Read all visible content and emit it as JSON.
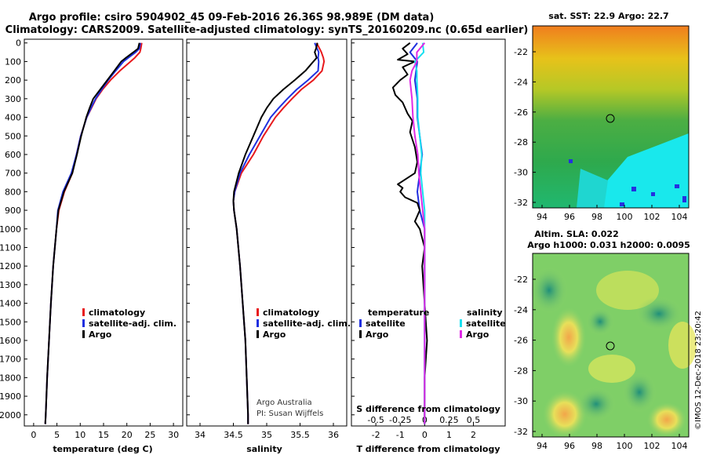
{
  "title": {
    "line1": "Argo profile: csiro 5904902_45 09-Feb-2016 26.36S 98.989E (DM data)",
    "line2": "Climatology: CARS2009. Satellite-adjusted climatology: synTS_20160209.nc (0.65d earlier)"
  },
  "colors": {
    "climatology": "#e8191c",
    "satellite": "#1f2fdf",
    "argo": "#000000",
    "sat_salinity": "#19e0f0",
    "argo_salinity": "#e02ae6"
  },
  "depth_ticks": [
    "0",
    "100",
    "200",
    "300",
    "400",
    "500",
    "600",
    "700",
    "800",
    "900",
    "1000",
    "1100",
    "1200",
    "1300",
    "1400",
    "1500",
    "1600",
    "1700",
    "1800",
    "1900",
    "2000"
  ],
  "chart_data": [
    {
      "type": "line",
      "name": "temperature",
      "xlabel": "temperature (deg C)",
      "xlim": [
        -2,
        32
      ],
      "ylim": [
        2060,
        -20
      ],
      "xticks": [
        "0",
        "5",
        "10",
        "15",
        "20",
        "25",
        "30"
      ],
      "xtick_values": [
        0,
        5,
        10,
        15,
        20,
        25,
        30
      ],
      "legend": [
        "climatology",
        "satellite-adj. clim.",
        "Argo"
      ],
      "series": [
        {
          "name": "climatology",
          "depth": [
            0,
            30,
            50,
            80,
            100,
            150,
            200,
            250,
            300,
            350,
            400,
            500,
            600,
            700,
            800,
            900,
            1000,
            1200,
            1400,
            1600,
            1800,
            2000,
            2050
          ],
          "values": [
            23.2,
            23,
            22.8,
            21.7,
            20.8,
            18.5,
            16.5,
            14.8,
            13.4,
            12.4,
            11.4,
            10.1,
            9.2,
            8.3,
            6.6,
            5.4,
            4.9,
            4.2,
            3.7,
            3.3,
            2.9,
            2.6,
            2.5
          ]
        },
        {
          "name": "satellite-adj. clim.",
          "depth": [
            0,
            30,
            50,
            80,
            100,
            150,
            200,
            250,
            300,
            350,
            400,
            500,
            600,
            700,
            800,
            900,
            1000,
            1200,
            1400,
            1600,
            1800,
            2000,
            2050
          ],
          "values": [
            22.9,
            22.7,
            21.9,
            20.3,
            19.3,
            17.6,
            16,
            14.6,
            13.3,
            12.3,
            11.4,
            10.1,
            9.2,
            8.1,
            6.3,
            5.2,
            4.9,
            4.2,
            3.7,
            3.3,
            2.9,
            2.6,
            2.5
          ]
        },
        {
          "name": "Argo",
          "depth": [
            0,
            30,
            50,
            80,
            100,
            150,
            200,
            250,
            300,
            350,
            400,
            500,
            600,
            700,
            800,
            900,
            1000,
            1200,
            1400,
            1600,
            1800,
            2000,
            2050
          ],
          "values": [
            22.7,
            22.4,
            21.4,
            19.8,
            18.8,
            17.3,
            15.8,
            14.3,
            12.8,
            12,
            11.3,
            10.2,
            9.3,
            8.3,
            6.5,
            5.3,
            4.9,
            4.2,
            3.7,
            3.3,
            2.9,
            2.6,
            2.5
          ]
        }
      ]
    },
    {
      "type": "line",
      "name": "salinity",
      "xlabel": "salinity",
      "xlim": [
        33.8,
        36.2
      ],
      "ylim": [
        2060,
        -20
      ],
      "xticks": [
        "34",
        "34.5",
        "35",
        "35.5",
        "36"
      ],
      "xtick_values": [
        34,
        34.5,
        35,
        35.5,
        36
      ],
      "legend": [
        "climatology",
        "satellite-adj. clim.",
        "Argo"
      ],
      "series": [
        {
          "name": "climatology",
          "depth": [
            0,
            50,
            80,
            100,
            150,
            200,
            250,
            300,
            350,
            400,
            500,
            600,
            700,
            800,
            850,
            900,
            1000,
            1200,
            1400,
            1600,
            1800,
            2000,
            2050
          ],
          "values": [
            35.75,
            35.82,
            35.85,
            35.86,
            35.83,
            35.7,
            35.52,
            35.38,
            35.25,
            35.13,
            34.95,
            34.8,
            34.62,
            34.52,
            34.5,
            34.51,
            34.55,
            34.6,
            34.64,
            34.68,
            34.7,
            34.72,
            34.72
          ]
        },
        {
          "name": "satellite-adj. clim.",
          "depth": [
            0,
            50,
            80,
            100,
            150,
            200,
            250,
            300,
            350,
            400,
            500,
            600,
            700,
            800,
            850,
            900,
            1000,
            1200,
            1400,
            1600,
            1800,
            2000,
            2050
          ],
          "values": [
            35.72,
            35.78,
            35.77,
            35.78,
            35.77,
            35.62,
            35.45,
            35.31,
            35.18,
            35.06,
            34.9,
            34.74,
            34.6,
            34.52,
            34.5,
            34.51,
            34.55,
            34.6,
            34.64,
            34.68,
            34.7,
            34.72,
            34.72
          ]
        },
        {
          "name": "Argo",
          "depth": [
            0,
            30,
            50,
            80,
            100,
            150,
            200,
            250,
            300,
            350,
            400,
            500,
            600,
            700,
            800,
            850,
            900,
            1000,
            1200,
            1400,
            1600,
            1800,
            2000,
            2050
          ],
          "values": [
            35.76,
            35.74,
            35.72,
            35.75,
            35.7,
            35.58,
            35.42,
            35.25,
            35.1,
            35,
            34.92,
            34.8,
            34.68,
            34.58,
            34.51,
            34.5,
            34.51,
            34.55,
            34.6,
            34.64,
            34.68,
            34.7,
            34.72,
            34.72
          ]
        }
      ],
      "annotation": [
        "Argo Australia",
        "PI: Susan Wijffels"
      ]
    },
    {
      "type": "line",
      "name": "difference",
      "xlabel": "T difference from climatology",
      "x2label": "S difference from climatology",
      "xlim": [
        -3,
        3.3
      ],
      "ylim": [
        2060,
        -20
      ],
      "xticks": [
        "-2",
        "-1",
        "0",
        "1",
        "2"
      ],
      "xtick_values": [
        -2,
        -1,
        0,
        1,
        2
      ],
      "x2ticks": [
        "-0.5",
        "-0.25",
        "0",
        "0.25",
        "0.5"
      ],
      "x2tick_values": [
        -0.5,
        -0.25,
        0,
        0.25,
        0.5
      ],
      "legend_temperature": {
        "title": "temperature",
        "items": [
          "satellite",
          "Argo"
        ]
      },
      "legend_salinity": {
        "title": "salinity",
        "items": [
          "satellite",
          "Argo"
        ]
      },
      "series": [
        {
          "name": "T satellite",
          "depth": [
            0,
            50,
            100,
            200,
            300,
            400,
            500,
            600,
            700,
            800,
            900,
            1000,
            1400,
            2050
          ],
          "values": [
            -0.3,
            -0.6,
            -0.3,
            -0.4,
            -0.3,
            -0.3,
            -0.2,
            -0.1,
            -0.2,
            -0.3,
            -0.2,
            0,
            0,
            0
          ]
        },
        {
          "name": "T Argo",
          "depth": [
            0,
            30,
            60,
            90,
            100,
            130,
            170,
            200,
            240,
            280,
            320,
            380,
            420,
            480,
            560,
            640,
            700,
            760,
            780,
            800,
            830,
            860,
            900,
            960,
            1000,
            1100,
            1200,
            1400,
            1600,
            1800,
            2050
          ],
          "values": [
            -0.6,
            -0.9,
            -0.7,
            -1.1,
            -0.4,
            -0.9,
            -0.7,
            -1,
            -1.3,
            -1.2,
            -0.9,
            -0.7,
            -0.5,
            -0.6,
            -0.4,
            -0.3,
            -0.4,
            -1.1,
            -0.9,
            -1.0,
            -0.8,
            -0.3,
            -0.2,
            -0.4,
            -0.2,
            0,
            -0.1,
            0,
            0.1,
            0,
            0
          ]
        },
        {
          "name": "S satellite",
          "depth": [
            0,
            50,
            100,
            150,
            200,
            300,
            400,
            500,
            600,
            700,
            800,
            900,
            1000,
            1400,
            2050
          ],
          "values": [
            -0.02,
            -0.01,
            -0.1,
            -0.08,
            -0.08,
            -0.07,
            -0.07,
            -0.05,
            -0.03,
            -0.04,
            -0.02,
            0,
            0,
            0,
            0
          ]
        },
        {
          "name": "S Argo",
          "depth": [
            0,
            50,
            100,
            150,
            200,
            300,
            400,
            500,
            600,
            700,
            800,
            900,
            1000,
            1400,
            2050
          ],
          "values": [
            0,
            -0.08,
            -0.08,
            -0.13,
            -0.15,
            -0.13,
            -0.12,
            -0.1,
            -0.07,
            -0.06,
            -0.04,
            -0.02,
            0,
            0,
            0
          ]
        }
      ]
    }
  ],
  "maps": {
    "sst": {
      "title": "sat. SST: 22.9 Argo: 22.7",
      "yticks": [
        "-22",
        "-24",
        "-26",
        "-28",
        "-30",
        "-32"
      ],
      "xticks": [
        "94",
        "96",
        "98",
        "100",
        "102",
        "104"
      ]
    },
    "sla": {
      "title1": "Altim. SLA: 0.022",
      "title2": "Argo h1000: 0.031 h2000: 0.0095",
      "yticks": [
        "-22",
        "-24",
        "-26",
        "-28",
        "-30",
        "-32"
      ],
      "xticks": [
        "94",
        "96",
        "98",
        "100",
        "102",
        "104"
      ]
    }
  },
  "credit": "©IMOS 12-Dec-2018 23:20:42"
}
